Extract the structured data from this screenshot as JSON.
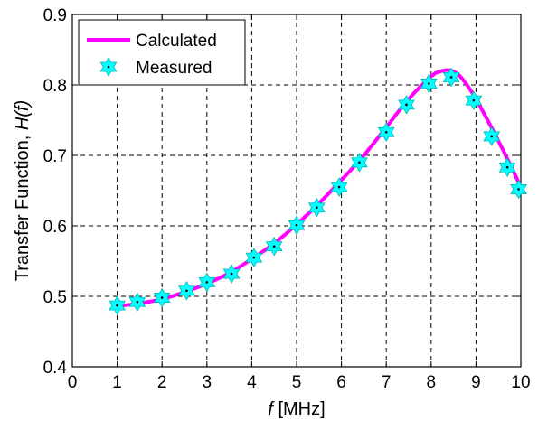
{
  "chart_data": {
    "type": "line",
    "xlabel_var": "f",
    "xlabel_unit": " [MHz]",
    "ylabel_text": "Transfer Function,  ",
    "ylabel_var": "H(f)",
    "xlim": [
      0,
      10
    ],
    "ylim": [
      0.4,
      0.9
    ],
    "grid": true,
    "legend_position": "top-left",
    "x_ticks": [
      "0",
      "1",
      "2",
      "3",
      "4",
      "5",
      "6",
      "7",
      "8",
      "9",
      "10"
    ],
    "y_ticks": [
      "0.4",
      "0.5",
      "0.6",
      "0.7",
      "0.8",
      "0.9"
    ],
    "series": [
      {
        "name": "Calculated",
        "style": "line",
        "color": "#ff00ff",
        "x": [
          1.0,
          1.5,
          2.0,
          2.5,
          3.0,
          3.5,
          4.0,
          4.5,
          5.0,
          5.5,
          6.0,
          6.5,
          7.0,
          7.5,
          8.0,
          8.2,
          8.4,
          8.6,
          8.8,
          9.0,
          9.2,
          9.4,
          9.6,
          9.8,
          10.0
        ],
        "y": [
          0.486,
          0.49,
          0.496,
          0.506,
          0.518,
          0.533,
          0.553,
          0.575,
          0.602,
          0.632,
          0.665,
          0.7,
          0.74,
          0.78,
          0.812,
          0.819,
          0.821,
          0.815,
          0.8,
          0.78,
          0.757,
          0.733,
          0.708,
          0.682,
          0.655
        ]
      },
      {
        "name": "Measured",
        "style": "marker",
        "marker": "hexagram",
        "color": "#00ffff",
        "x": [
          1.0,
          1.45,
          2.0,
          2.55,
          3.0,
          3.55,
          4.05,
          4.5,
          5.0,
          5.45,
          5.95,
          6.4,
          7.0,
          7.45,
          7.95,
          8.45,
          8.95,
          9.35,
          9.7,
          9.95
        ],
        "y": [
          0.487,
          0.492,
          0.498,
          0.508,
          0.52,
          0.532,
          0.555,
          0.571,
          0.601,
          0.626,
          0.655,
          0.69,
          0.733,
          0.772,
          0.802,
          0.811,
          0.778,
          0.727,
          0.683,
          0.652
        ]
      }
    ]
  }
}
